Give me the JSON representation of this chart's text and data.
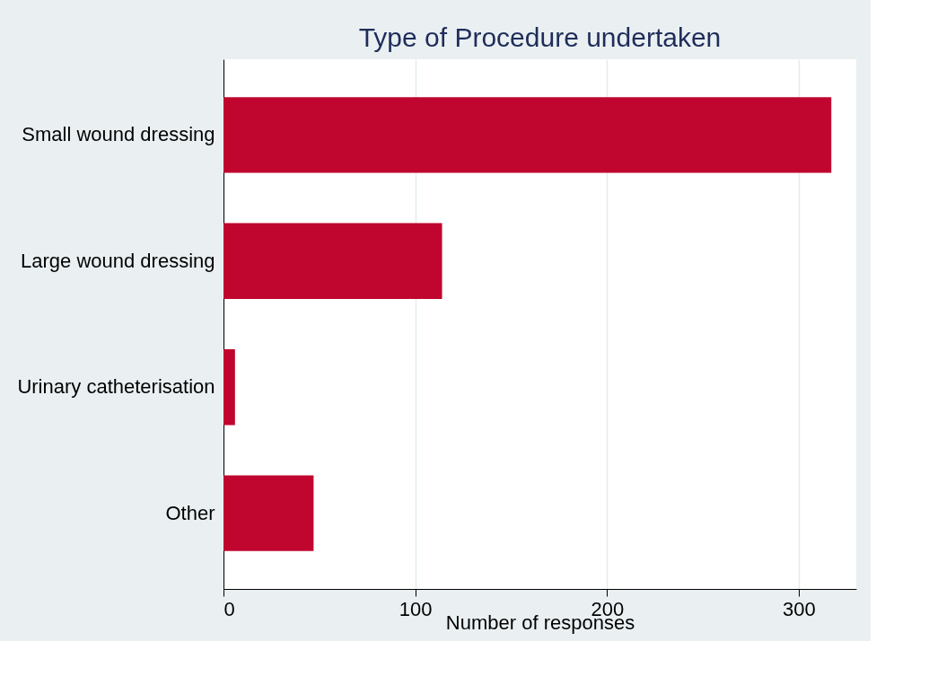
{
  "chart_data": {
    "type": "bar",
    "orientation": "horizontal",
    "title": "Type of Procedure undertaken",
    "xlabel": "Number of responses",
    "categories": [
      "Small wound dressing",
      "Large wound dressing",
      "Urinary catheterisation",
      "Other"
    ],
    "values": [
      317,
      114,
      6,
      47
    ],
    "color": "#c0062f",
    "xlim": [
      0,
      330
    ],
    "xticks": [
      0,
      100,
      200,
      300
    ],
    "grid": "x"
  }
}
